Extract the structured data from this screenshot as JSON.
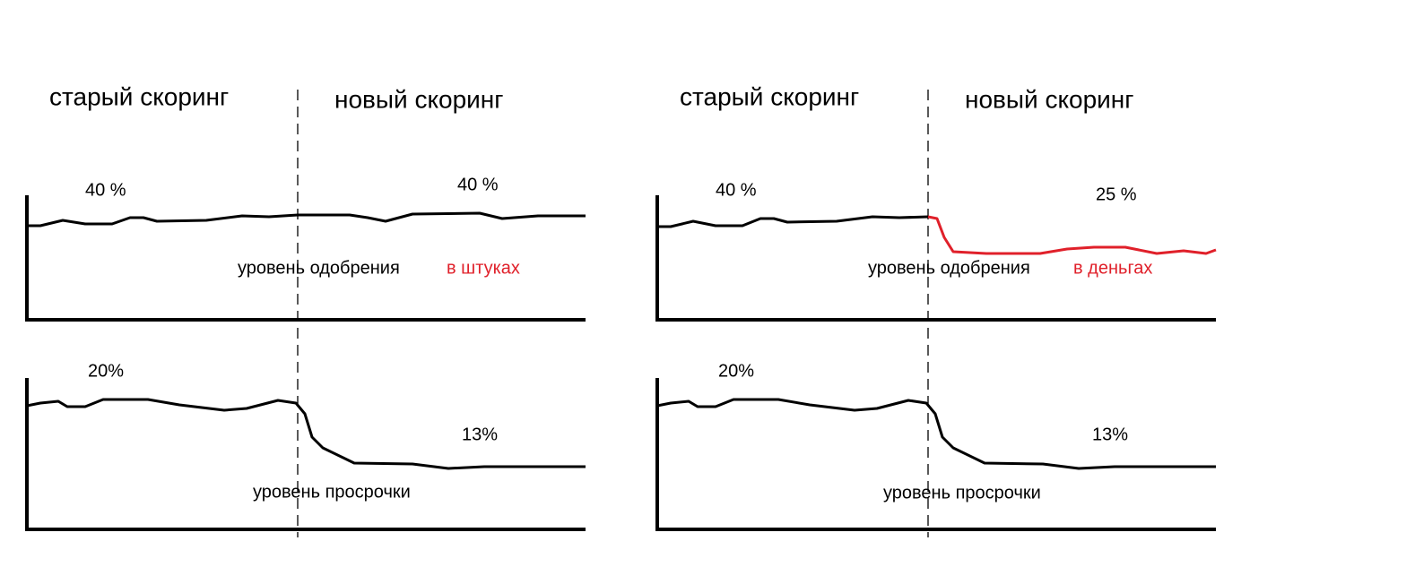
{
  "panels": [
    {
      "old_label": "старый скоринг",
      "new_label": "новый скоринг",
      "approval": {
        "old_value": "40 %",
        "new_value": "40 %",
        "caption": "уровень одобрения",
        "caption_highlight": "в штуках"
      },
      "delinquency": {
        "old_value": "20%",
        "new_value": "13%",
        "caption": "уровень просрочки"
      }
    },
    {
      "old_label": "старый скоринг",
      "new_label": "новый скоринг",
      "approval": {
        "old_value": "40 %",
        "new_value": "25 %",
        "caption": "уровень одобрения",
        "caption_highlight": "в деньгах"
      },
      "delinquency": {
        "old_value": "20%",
        "new_value": "13%",
        "caption": "уровень просрочки"
      }
    }
  ]
}
